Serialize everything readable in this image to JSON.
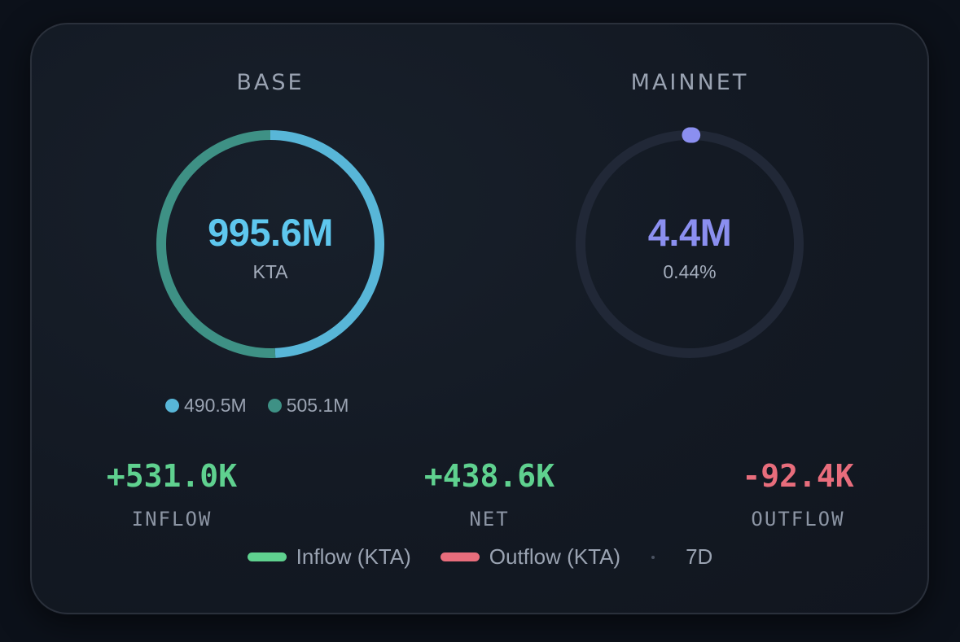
{
  "base": {
    "title": "BASE",
    "value": "995.6M",
    "unit": "KTA",
    "segments": [
      {
        "label": "490.5M",
        "amount": 490.5,
        "color": "#58b6d8"
      },
      {
        "label": "505.1M",
        "amount": 505.1,
        "color": "#3e9185"
      }
    ]
  },
  "mainnet": {
    "title": "MAINNET",
    "value": "4.4M",
    "percent_label": "0.44%",
    "percent": 0.44,
    "color": "#8b8ff0",
    "track_color": "#212837"
  },
  "metrics": [
    {
      "value": "+531.0K",
      "label": "INFLOW",
      "color": "#5fd18f"
    },
    {
      "value": "+438.6K",
      "label": "NET",
      "color": "#5fd18f"
    },
    {
      "value": "-92.4K",
      "label": "OUTFLOW",
      "color": "#e86d7c"
    }
  ],
  "legend": {
    "inflow_label": "Inflow (KTA)",
    "inflow_color": "#5fd18f",
    "outflow_label": "Outflow (KTA)",
    "outflow_color": "#e86d7c",
    "period": "7D"
  },
  "colors": {
    "base_value": "#5ec7ee",
    "mainnet_value": "#8b8ff0"
  }
}
